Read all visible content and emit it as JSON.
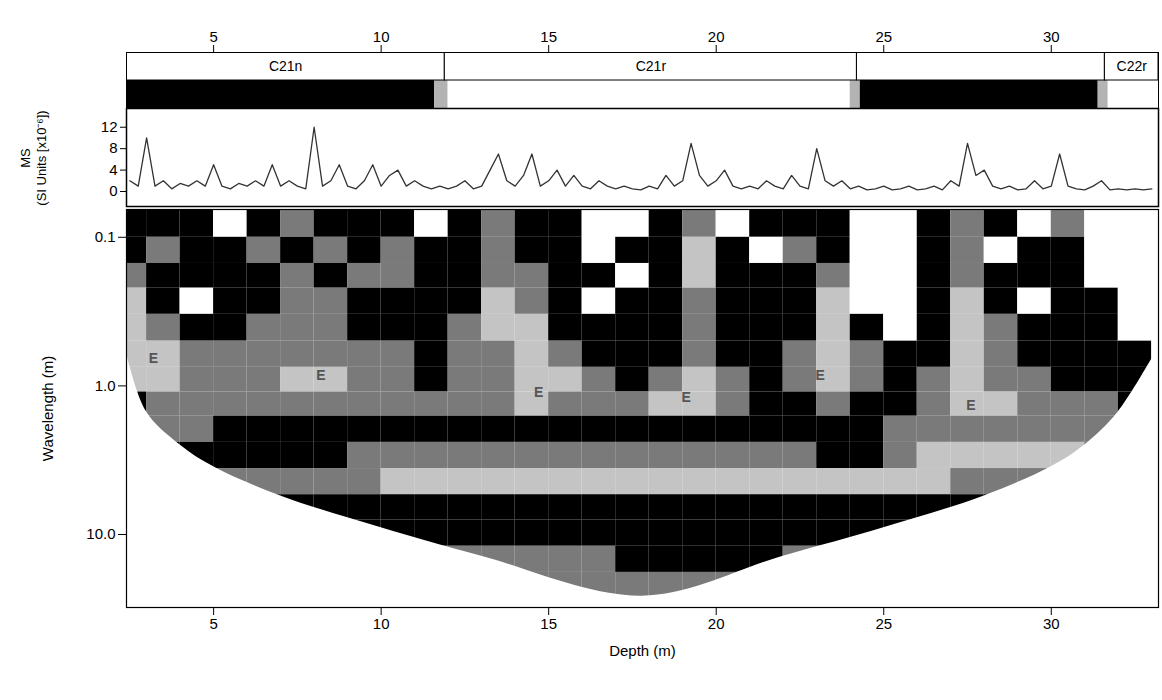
{
  "chart_data": [
    {
      "type": "magnetostratigraphy",
      "xlim": [
        2.4,
        33.2
      ],
      "xticks": [
        5,
        10,
        15,
        20,
        25,
        30
      ],
      "tick_labels": "x",
      "chrons": [
        {
          "name": "C21n",
          "from": 2.4,
          "to": 11.9
        },
        {
          "name": "C21r",
          "from": 11.9,
          "to": 24.2
        },
        {
          "name": null,
          "from": 24.2,
          "to": 31.6
        },
        {
          "name": "C22r",
          "from": 31.6,
          "to": 33.2
        }
      ],
      "polarity": [
        {
          "from": 2.4,
          "to": 11.6,
          "color": "#000000"
        },
        {
          "from": 11.6,
          "to": 12.0,
          "color": "#b3b3b3"
        },
        {
          "from": 12.0,
          "to": 24.0,
          "color": "#ffffff"
        },
        {
          "from": 24.0,
          "to": 24.3,
          "color": "#b3b3b3"
        },
        {
          "from": 24.3,
          "to": 31.4,
          "color": "#000000"
        },
        {
          "from": 31.4,
          "to": 31.7,
          "color": "#b3b3b3"
        },
        {
          "from": 31.7,
          "to": 33.2,
          "color": "#ffffff"
        }
      ]
    },
    {
      "type": "line",
      "y_label": "MS\n(SI Units [x10⁻⁶])",
      "xlim": [
        2.4,
        33.2
      ],
      "ylim": [
        -2.8,
        15.5
      ],
      "yticks": [
        0,
        4,
        8,
        12
      ],
      "tick_labels": "y",
      "color": "#333333",
      "x": [
        2.5,
        2.75,
        3,
        3.25,
        3.5,
        3.75,
        4,
        4.25,
        4.5,
        4.75,
        5,
        5.25,
        5.5,
        5.75,
        6,
        6.25,
        6.5,
        6.75,
        7,
        7.25,
        7.5,
        7.75,
        8,
        8.25,
        8.5,
        8.75,
        9,
        9.25,
        9.5,
        9.75,
        10,
        10.25,
        10.5,
        10.75,
        11,
        11.25,
        11.5,
        11.75,
        12,
        12.25,
        12.5,
        12.75,
        13,
        13.25,
        13.5,
        13.75,
        14,
        14.25,
        14.5,
        14.75,
        15,
        15.25,
        15.5,
        15.75,
        16,
        16.25,
        16.5,
        16.75,
        17,
        17.25,
        17.5,
        17.75,
        18,
        18.25,
        18.5,
        18.75,
        19,
        19.25,
        19.5,
        19.75,
        20,
        20.25,
        20.5,
        20.75,
        21,
        21.25,
        21.5,
        21.75,
        22,
        22.25,
        22.5,
        22.75,
        23,
        23.25,
        23.5,
        23.75,
        24,
        24.25,
        24.5,
        24.75,
        25,
        25.25,
        25.5,
        25.75,
        26,
        26.25,
        26.5,
        26.75,
        27,
        27.25,
        27.5,
        27.75,
        28,
        28.25,
        28.5,
        28.75,
        29,
        29.25,
        29.5,
        29.75,
        30,
        30.25,
        30.5,
        30.75,
        31,
        31.25,
        31.5,
        31.75,
        32,
        32.25,
        32.5,
        32.75,
        33
      ],
      "values": [
        2,
        1,
        10,
        1,
        2,
        0.5,
        1.5,
        1,
        2,
        1,
        5,
        1,
        0.5,
        1.5,
        1,
        2,
        1,
        5,
        1,
        2,
        1,
        0.5,
        12,
        1,
        2,
        5,
        1,
        0.5,
        2,
        5,
        1,
        3,
        4,
        1,
        2,
        1,
        0.5,
        1,
        0.5,
        1,
        2,
        0.5,
        1,
        4,
        7,
        2,
        1,
        3,
        7,
        1,
        2,
        4,
        1,
        3,
        1,
        0.5,
        2,
        1,
        0.5,
        1,
        0.5,
        0.3,
        1,
        0.5,
        3,
        1,
        2,
        9,
        3,
        1,
        2,
        4,
        1,
        0.5,
        1,
        0.5,
        2,
        1,
        0.5,
        3,
        1,
        0.5,
        8,
        2,
        1,
        2,
        0.5,
        1,
        0.3,
        0.5,
        1,
        0.3,
        0.5,
        1,
        0.3,
        0.5,
        1,
        0.3,
        2,
        1,
        9,
        3,
        4,
        1,
        0.5,
        1,
        0.3,
        0.5,
        2,
        0.5,
        1,
        7,
        1,
        0.5,
        0.3,
        1,
        2,
        0.3,
        0.5,
        0.3,
        0.5,
        0.3,
        0.5
      ]
    },
    {
      "type": "heatmap",
      "x_label": "Depth (m)",
      "y_label": "Wavelength (m)",
      "xlim": [
        2.4,
        33.2
      ],
      "xticks": [
        5,
        10,
        15,
        20,
        25,
        30
      ],
      "ylim": [
        0.065,
        31
      ],
      "yticks": [
        0.1,
        {
          "value": 1,
          "label": "1.0"
        },
        {
          "value": 10,
          "label": "10.0"
        }
      ],
      "log": "y",
      "colors": [
        "#ffffff",
        "#000000",
        "#7a7a7a",
        "#c4c4c4"
      ],
      "depth_edges": [
        2,
        3,
        4,
        5,
        6,
        7,
        8,
        9,
        10,
        11,
        12,
        13,
        14,
        15,
        16,
        17,
        18,
        19,
        20,
        21,
        22,
        23,
        24,
        25,
        26,
        27,
        28,
        29,
        30,
        31,
        32,
        33,
        34
      ],
      "wavelength_edges": [
        0.065,
        0.1,
        0.15,
        0.22,
        0.33,
        0.5,
        0.75,
        1.1,
        1.6,
        2.4,
        3.6,
        5.4,
        8,
        12,
        18,
        31
      ],
      "power": [
        [
          1,
          1,
          1,
          0,
          1,
          2,
          1,
          1,
          1,
          0,
          1,
          2,
          1,
          1,
          0,
          0,
          1,
          2,
          0,
          1,
          1,
          1,
          0,
          0,
          1,
          2,
          1,
          0,
          2,
          0,
          0,
          0
        ],
        [
          1,
          2,
          1,
          1,
          2,
          1,
          2,
          1,
          2,
          1,
          1,
          2,
          1,
          1,
          0,
          1,
          1,
          3,
          1,
          0,
          2,
          1,
          0,
          0,
          1,
          2,
          0,
          1,
          1,
          0,
          0,
          0
        ],
        [
          2,
          1,
          1,
          1,
          1,
          2,
          1,
          2,
          2,
          1,
          1,
          2,
          2,
          1,
          1,
          0,
          1,
          3,
          1,
          1,
          1,
          2,
          0,
          0,
          1,
          2,
          1,
          1,
          1,
          0,
          0,
          0
        ],
        [
          3,
          1,
          0,
          1,
          1,
          2,
          2,
          1,
          1,
          1,
          1,
          3,
          2,
          1,
          0,
          1,
          1,
          2,
          1,
          1,
          1,
          3,
          0,
          0,
          1,
          3,
          1,
          0,
          1,
          1,
          0,
          0
        ],
        [
          3,
          2,
          1,
          1,
          2,
          2,
          2,
          1,
          1,
          1,
          2,
          3,
          3,
          1,
          1,
          1,
          1,
          2,
          1,
          1,
          1,
          3,
          1,
          0,
          1,
          3,
          2,
          1,
          1,
          1,
          0,
          0
        ],
        [
          3,
          3,
          2,
          2,
          2,
          2,
          2,
          2,
          2,
          1,
          2,
          2,
          3,
          2,
          1,
          1,
          1,
          2,
          1,
          1,
          2,
          3,
          2,
          1,
          1,
          3,
          2,
          1,
          1,
          1,
          1,
          0
        ],
        [
          3,
          3,
          2,
          2,
          2,
          3,
          3,
          2,
          2,
          1,
          2,
          2,
          3,
          3,
          2,
          1,
          2,
          3,
          2,
          1,
          2,
          3,
          2,
          1,
          2,
          3,
          2,
          2,
          1,
          1,
          1,
          0
        ],
        [
          1,
          2,
          2,
          2,
          2,
          2,
          2,
          2,
          2,
          2,
          2,
          2,
          3,
          2,
          2,
          2,
          3,
          3,
          2,
          1,
          1,
          2,
          1,
          1,
          2,
          3,
          3,
          2,
          2,
          2,
          1,
          1
        ],
        [
          2,
          2,
          2,
          1,
          1,
          1,
          1,
          1,
          1,
          1,
          1,
          1,
          1,
          1,
          1,
          1,
          1,
          1,
          1,
          1,
          1,
          1,
          1,
          2,
          2,
          2,
          2,
          2,
          2,
          2,
          2,
          2
        ],
        [
          1,
          1,
          1,
          1,
          1,
          1,
          1,
          2,
          2,
          2,
          2,
          2,
          2,
          2,
          2,
          2,
          2,
          2,
          2,
          2,
          2,
          1,
          1,
          2,
          3,
          3,
          3,
          3,
          3,
          2,
          2,
          2
        ],
        [
          1,
          2,
          2,
          2,
          2,
          2,
          2,
          2,
          3,
          3,
          3,
          3,
          3,
          3,
          3,
          3,
          3,
          3,
          3,
          3,
          3,
          3,
          3,
          3,
          3,
          2,
          2,
          2,
          2,
          2,
          1,
          1
        ],
        [
          1,
          1,
          1,
          1,
          1,
          1,
          1,
          1,
          1,
          1,
          1,
          1,
          1,
          1,
          1,
          1,
          1,
          1,
          1,
          1,
          1,
          1,
          1,
          1,
          1,
          1,
          1,
          1,
          1,
          1,
          1,
          1
        ],
        [
          1,
          1,
          1,
          1,
          1,
          1,
          1,
          1,
          1,
          1,
          1,
          1,
          1,
          1,
          1,
          1,
          1,
          1,
          1,
          1,
          1,
          1,
          1,
          1,
          1,
          1,
          1,
          1,
          1,
          1,
          1,
          1
        ],
        [
          1,
          1,
          1,
          1,
          1,
          1,
          1,
          1,
          1,
          2,
          2,
          2,
          2,
          2,
          2,
          1,
          1,
          1,
          1,
          1,
          2,
          2,
          2,
          1,
          1,
          1,
          1,
          1,
          1,
          1,
          1,
          1
        ],
        [
          2,
          2,
          2,
          2,
          2,
          2,
          2,
          2,
          2,
          2,
          2,
          2,
          2,
          2,
          2,
          2,
          2,
          2,
          2,
          2,
          2,
          2,
          2,
          2,
          2,
          2,
          2,
          2,
          2,
          2,
          2,
          2
        ]
      ],
      "cone_of_influence": {
        "x": [
          2.4,
          3,
          4,
          5,
          7,
          10,
          13,
          17.8,
          22,
          25,
          28,
          30,
          31,
          32,
          33.2
        ],
        "wavelength": [
          0.6,
          1.5,
          2.5,
          3.5,
          5.5,
          9,
          14,
          26,
          14,
          9,
          5.5,
          3.5,
          2.5,
          1.5,
          0.55
        ]
      },
      "annotations": [
        {
          "x": 3.2,
          "y": 0.65,
          "text": "E"
        },
        {
          "x": 8.2,
          "y": 0.85,
          "text": "E"
        },
        {
          "x": 14.7,
          "y": 1.1,
          "text": "E"
        },
        {
          "x": 19.1,
          "y": 1.2,
          "text": "E"
        },
        {
          "x": 23.1,
          "y": 0.85,
          "text": "E"
        },
        {
          "x": 27.6,
          "y": 1.35,
          "text": "E"
        }
      ]
    }
  ]
}
